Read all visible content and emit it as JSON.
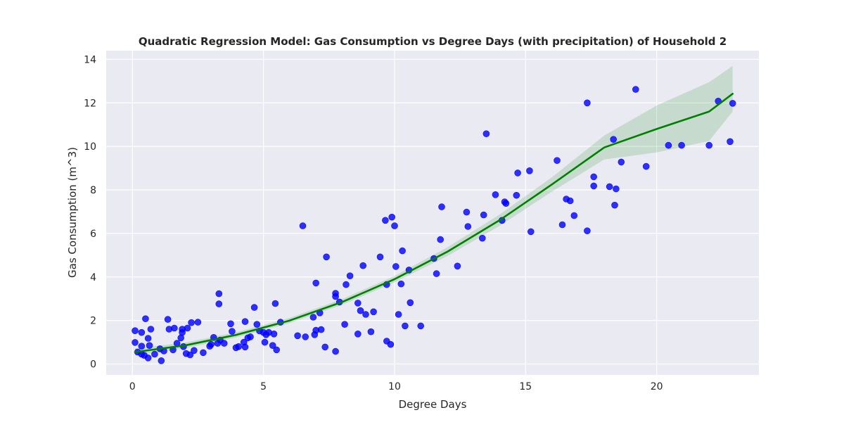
{
  "chart_data": {
    "type": "scatter",
    "title": "Quadratic Regression Model: Gas Consumption vs Degree Days (with precipitation) of Household 2",
    "xlabel": "Degree Days",
    "ylabel": "Gas Consumption (m^3)",
    "xlim": [
      -1.0,
      23.9
    ],
    "ylim": [
      -0.5,
      14.4
    ],
    "x_ticks": [
      0,
      5,
      10,
      15,
      20
    ],
    "x_tick_labels": [
      "0",
      "5",
      "10",
      "15",
      "20"
    ],
    "y_ticks": [
      0,
      2,
      4,
      6,
      8,
      10,
      12,
      14
    ],
    "y_tick_labels": [
      "0",
      "2",
      "4",
      "6",
      "8",
      "10",
      "12",
      "14"
    ],
    "grid": true,
    "colors": {
      "background": "#eaeaf2",
      "grid": "#ffffff",
      "points": "#0000ff",
      "fit_line": "#008000",
      "confidence_band": "#008000"
    },
    "series": [
      {
        "values": [
          [
            0.1,
            1.53
          ],
          [
            0.1,
            0.99
          ],
          [
            0.2,
            0.55
          ],
          [
            0.35,
            1.45
          ],
          [
            0.35,
            0.82
          ],
          [
            0.35,
            0.45
          ],
          [
            0.45,
            0.4
          ],
          [
            0.5,
            2.08
          ],
          [
            0.6,
            1.18
          ],
          [
            0.6,
            0.28
          ],
          [
            0.65,
            0.85
          ],
          [
            0.7,
            1.6
          ],
          [
            0.85,
            0.45
          ],
          [
            1.05,
            0.7
          ],
          [
            1.1,
            0.15
          ],
          [
            1.2,
            0.6
          ],
          [
            1.35,
            2.05
          ],
          [
            1.4,
            1.6
          ],
          [
            1.55,
            0.65
          ],
          [
            1.6,
            1.65
          ],
          [
            1.7,
            0.95
          ],
          [
            1.85,
            1.2
          ],
          [
            1.9,
            1.6
          ],
          [
            1.9,
            1.45
          ],
          [
            1.95,
            0.8
          ],
          [
            2.05,
            0.48
          ],
          [
            2.1,
            1.65
          ],
          [
            2.2,
            0.42
          ],
          [
            2.25,
            1.9
          ],
          [
            2.35,
            0.62
          ],
          [
            2.5,
            1.92
          ],
          [
            2.7,
            0.52
          ],
          [
            2.95,
            0.82
          ],
          [
            3.0,
            0.9
          ],
          [
            3.1,
            1.22
          ],
          [
            3.25,
            0.95
          ],
          [
            3.3,
            3.23
          ],
          [
            3.3,
            2.76
          ],
          [
            3.35,
            1.1
          ],
          [
            3.5,
            0.95
          ],
          [
            3.75,
            1.85
          ],
          [
            3.8,
            1.5
          ],
          [
            3.95,
            0.75
          ],
          [
            4.05,
            0.8
          ],
          [
            4.25,
            1.0
          ],
          [
            4.3,
            1.95
          ],
          [
            4.3,
            0.78
          ],
          [
            4.4,
            1.2
          ],
          [
            4.5,
            1.25
          ],
          [
            4.65,
            2.6
          ],
          [
            4.75,
            1.82
          ],
          [
            4.85,
            1.52
          ],
          [
            5.0,
            1.45
          ],
          [
            5.05,
            1.0
          ],
          [
            5.1,
            1.35
          ],
          [
            5.2,
            1.45
          ],
          [
            5.35,
            0.85
          ],
          [
            5.4,
            1.38
          ],
          [
            5.45,
            2.78
          ],
          [
            5.5,
            0.65
          ],
          [
            5.65,
            1.92
          ],
          [
            6.3,
            1.3
          ],
          [
            6.5,
            6.35
          ],
          [
            6.6,
            1.25
          ],
          [
            6.9,
            2.15
          ],
          [
            6.95,
            1.35
          ],
          [
            7.0,
            3.72
          ],
          [
            7.0,
            1.55
          ],
          [
            7.15,
            2.35
          ],
          [
            7.2,
            1.58
          ],
          [
            7.35,
            0.78
          ],
          [
            7.4,
            4.92
          ],
          [
            7.75,
            0.58
          ],
          [
            7.75,
            3.25
          ],
          [
            7.75,
            3.1
          ],
          [
            7.9,
            2.85
          ],
          [
            8.1,
            1.82
          ],
          [
            8.15,
            3.65
          ],
          [
            8.3,
            4.05
          ],
          [
            8.6,
            1.38
          ],
          [
            8.6,
            2.8
          ],
          [
            8.7,
            2.45
          ],
          [
            8.8,
            4.52
          ],
          [
            8.9,
            2.28
          ],
          [
            9.1,
            1.48
          ],
          [
            9.2,
            2.4
          ],
          [
            9.45,
            4.92
          ],
          [
            9.65,
            6.6
          ],
          [
            9.7,
            1.05
          ],
          [
            9.7,
            3.65
          ],
          [
            9.85,
            0.9
          ],
          [
            9.9,
            6.75
          ],
          [
            10.0,
            6.35
          ],
          [
            10.05,
            4.48
          ],
          [
            10.15,
            2.28
          ],
          [
            10.25,
            3.68
          ],
          [
            10.3,
            5.2
          ],
          [
            10.4,
            1.75
          ],
          [
            10.55,
            4.32
          ],
          [
            10.6,
            2.82
          ],
          [
            11.0,
            1.75
          ],
          [
            11.5,
            4.85
          ],
          [
            11.6,
            4.15
          ],
          [
            11.75,
            5.72
          ],
          [
            11.8,
            7.22
          ],
          [
            12.4,
            4.5
          ],
          [
            12.75,
            6.98
          ],
          [
            12.8,
            6.32
          ],
          [
            13.35,
            5.78
          ],
          [
            13.4,
            6.85
          ],
          [
            13.5,
            10.58
          ],
          [
            13.85,
            7.78
          ],
          [
            14.1,
            6.6
          ],
          [
            14.2,
            7.45
          ],
          [
            14.25,
            7.38
          ],
          [
            14.65,
            7.75
          ],
          [
            14.7,
            8.78
          ],
          [
            15.15,
            8.88
          ],
          [
            15.2,
            6.08
          ],
          [
            16.2,
            9.35
          ],
          [
            16.4,
            6.4
          ],
          [
            16.55,
            7.58
          ],
          [
            16.7,
            7.5
          ],
          [
            16.85,
            6.82
          ],
          [
            17.35,
            12.0
          ],
          [
            17.35,
            6.12
          ],
          [
            17.6,
            8.6
          ],
          [
            17.6,
            8.18
          ],
          [
            18.2,
            8.15
          ],
          [
            18.35,
            10.32
          ],
          [
            18.4,
            7.3
          ],
          [
            18.45,
            8.05
          ],
          [
            18.65,
            9.28
          ],
          [
            19.2,
            12.62
          ],
          [
            19.6,
            9.08
          ],
          [
            20.45,
            10.05
          ],
          [
            20.95,
            10.05
          ],
          [
            22.0,
            10.05
          ],
          [
            22.35,
            12.08
          ],
          [
            22.8,
            10.22
          ],
          [
            22.9,
            11.98
          ]
        ]
      }
    ],
    "fit": {
      "type": "quadratic",
      "x": [
        0.1,
        2,
        4,
        6,
        8,
        10,
        12,
        14,
        16,
        18,
        20,
        22,
        22.9
      ],
      "y": [
        0.55,
        0.85,
        1.35,
        2.0,
        2.85,
        3.9,
        5.15,
        6.6,
        8.25,
        9.95,
        10.8,
        11.6,
        12.42
      ],
      "band_upper": [
        0.72,
        0.98,
        1.47,
        2.12,
        2.98,
        4.05,
        5.35,
        6.86,
        8.58,
        10.5,
        11.88,
        12.95,
        13.7
      ],
      "band_lower": [
        0.38,
        0.72,
        1.23,
        1.88,
        2.72,
        3.75,
        4.95,
        6.34,
        7.92,
        9.4,
        9.72,
        10.25,
        11.6
      ]
    }
  }
}
